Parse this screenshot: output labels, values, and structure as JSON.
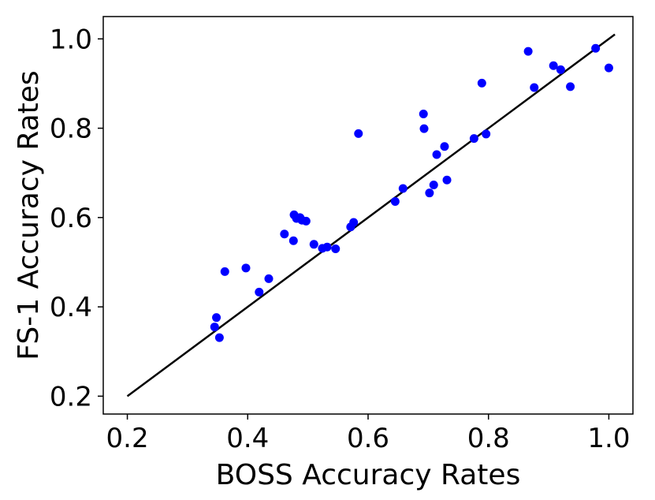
{
  "chart_data": {
    "type": "scatter",
    "title": "",
    "xlabel": "BOSS Accuracy Rates",
    "ylabel": "FS-1 Accuracy Rates",
    "xlim": [
      0.16,
      1.04
    ],
    "ylim": [
      0.16,
      1.05
    ],
    "xticks": [
      "0.2",
      "0.4",
      "0.6",
      "0.8",
      "1.0"
    ],
    "yticks": [
      "0.2",
      "0.4",
      "0.6",
      "0.8",
      "1.0"
    ],
    "grid": false,
    "point_color": "#0000ff",
    "line_color": "#000000",
    "reference_line": {
      "x": [
        0.2,
        1.01
      ],
      "y": [
        0.2,
        1.01
      ]
    },
    "points": [
      {
        "x": 0.345,
        "y": 0.355
      },
      {
        "x": 0.348,
        "y": 0.376
      },
      {
        "x": 0.353,
        "y": 0.331
      },
      {
        "x": 0.362,
        "y": 0.479
      },
      {
        "x": 0.397,
        "y": 0.487
      },
      {
        "x": 0.419,
        "y": 0.433
      },
      {
        "x": 0.435,
        "y": 0.463
      },
      {
        "x": 0.461,
        "y": 0.563
      },
      {
        "x": 0.476,
        "y": 0.548
      },
      {
        "x": 0.477,
        "y": 0.606
      },
      {
        "x": 0.481,
        "y": 0.598
      },
      {
        "x": 0.487,
        "y": 0.6
      },
      {
        "x": 0.49,
        "y": 0.594
      },
      {
        "x": 0.497,
        "y": 0.592
      },
      {
        "x": 0.51,
        "y": 0.54
      },
      {
        "x": 0.524,
        "y": 0.531
      },
      {
        "x": 0.532,
        "y": 0.534
      },
      {
        "x": 0.546,
        "y": 0.53
      },
      {
        "x": 0.571,
        "y": 0.579
      },
      {
        "x": 0.576,
        "y": 0.589
      },
      {
        "x": 0.584,
        "y": 0.788
      },
      {
        "x": 0.645,
        "y": 0.636
      },
      {
        "x": 0.658,
        "y": 0.665
      },
      {
        "x": 0.692,
        "y": 0.832
      },
      {
        "x": 0.693,
        "y": 0.799
      },
      {
        "x": 0.702,
        "y": 0.655
      },
      {
        "x": 0.709,
        "y": 0.673
      },
      {
        "x": 0.714,
        "y": 0.741
      },
      {
        "x": 0.727,
        "y": 0.759
      },
      {
        "x": 0.731,
        "y": 0.684
      },
      {
        "x": 0.776,
        "y": 0.777
      },
      {
        "x": 0.789,
        "y": 0.901
      },
      {
        "x": 0.796,
        "y": 0.787
      },
      {
        "x": 0.866,
        "y": 0.972
      },
      {
        "x": 0.876,
        "y": 0.891
      },
      {
        "x": 0.908,
        "y": 0.94
      },
      {
        "x": 0.92,
        "y": 0.931
      },
      {
        "x": 0.936,
        "y": 0.893
      },
      {
        "x": 0.978,
        "y": 0.979
      },
      {
        "x": 1.0,
        "y": 0.935
      }
    ]
  }
}
